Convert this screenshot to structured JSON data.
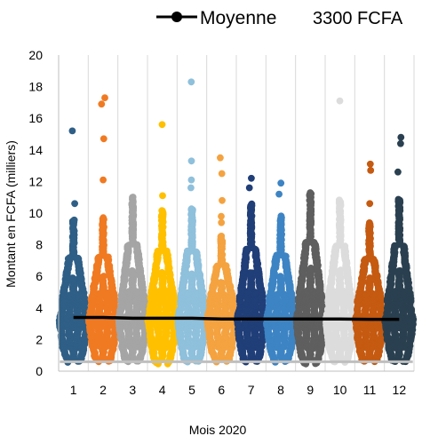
{
  "chart_data": {
    "type": "scatter",
    "subtype": "beeswarm",
    "title": "",
    "xlabel": "Mois 2020",
    "ylabel": "Montant en FCFA (milliers)",
    "ylim": [
      0,
      20
    ],
    "yticks": [
      0,
      2,
      4,
      6,
      8,
      10,
      12,
      14,
      16,
      18,
      20
    ],
    "grid": "vertical",
    "legend": {
      "position": "top-right",
      "series_label": "Moyenne",
      "annotation": "3300 FCFA"
    },
    "categories": [
      "1",
      "2",
      "3",
      "4",
      "5",
      "6",
      "7",
      "8",
      "9",
      "10",
      "11",
      "12"
    ],
    "series": [
      {
        "category": "1",
        "color": "#2f5f86",
        "min": 0.6,
        "q1": 2.4,
        "median": 3.2,
        "q3": 4.3,
        "dense_max": 9.6,
        "outliers": [
          10.6,
          15.2
        ]
      },
      {
        "category": "2",
        "color": "#f07a22",
        "min": 0.6,
        "q1": 2.4,
        "median": 3.3,
        "q3": 4.4,
        "dense_max": 9.7,
        "outliers": [
          12.1,
          14.7,
          16.9,
          17.3
        ]
      },
      {
        "category": "3",
        "color": "#a5a5a5",
        "min": 0.6,
        "q1": 2.4,
        "median": 3.3,
        "q3": 4.4,
        "dense_max": 11.0,
        "outliers": []
      },
      {
        "category": "4",
        "color": "#ffc000",
        "min": 0.5,
        "q1": 2.4,
        "median": 3.3,
        "q3": 4.5,
        "dense_max": 10.2,
        "outliers": [
          11.1,
          15.6
        ]
      },
      {
        "category": "5",
        "color": "#8fc0dc",
        "min": 0.6,
        "q1": 2.4,
        "median": 3.3,
        "q3": 4.4,
        "dense_max": 10.3,
        "outliers": [
          11.6,
          12.1,
          13.3,
          18.3
        ]
      },
      {
        "category": "6",
        "color": "#f4a340",
        "min": 0.6,
        "q1": 2.4,
        "median": 3.3,
        "q3": 4.4,
        "dense_max": 8.6,
        "outliers": [
          9.4,
          9.8,
          10.8,
          12.5,
          13.5
        ]
      },
      {
        "category": "7",
        "color": "#203e78",
        "min": 0.6,
        "q1": 2.3,
        "median": 3.2,
        "q3": 4.4,
        "dense_max": 10.6,
        "outliers": [
          11.6,
          12.2
        ]
      },
      {
        "category": "8",
        "color": "#3d84c4",
        "min": 0.6,
        "q1": 2.3,
        "median": 3.2,
        "q3": 4.4,
        "dense_max": 9.8,
        "outliers": [
          11.2,
          11.9
        ]
      },
      {
        "category": "9",
        "color": "#5f5f5f",
        "min": 0.5,
        "q1": 2.3,
        "median": 3.2,
        "q3": 4.4,
        "dense_max": 11.3,
        "outliers": []
      },
      {
        "category": "10",
        "color": "#dcdcdc",
        "min": 0.6,
        "q1": 2.3,
        "median": 3.2,
        "q3": 4.4,
        "dense_max": 10.9,
        "outliers": [
          17.1
        ]
      },
      {
        "category": "11",
        "color": "#c55a11",
        "min": 0.6,
        "q1": 2.3,
        "median": 3.2,
        "q3": 4.4,
        "dense_max": 9.4,
        "outliers": [
          10.6,
          12.7,
          13.1
        ]
      },
      {
        "category": "12",
        "color": "#2a4050",
        "min": 0.6,
        "q1": 2.3,
        "median": 3.2,
        "q3": 4.4,
        "dense_max": 10.9,
        "outliers": [
          12.6,
          14.4,
          14.8
        ]
      }
    ],
    "mean_line": {
      "name": "Moyenne",
      "color": "#000000",
      "values": [
        3.4,
        3.4,
        3.35,
        3.35,
        3.35,
        3.3,
        3.3,
        3.3,
        3.3,
        3.3,
        3.28,
        3.28
      ]
    },
    "min_line": {
      "color": "#bfbfbf",
      "value": 0.6
    }
  }
}
